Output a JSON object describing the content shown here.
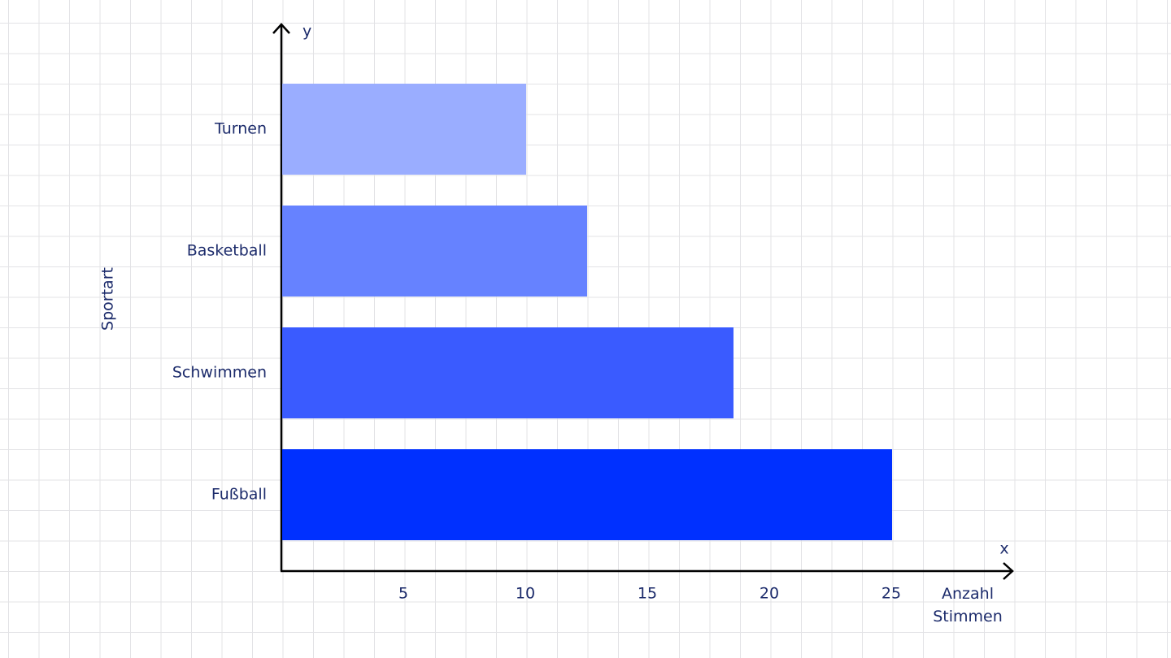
{
  "chart_data": {
    "type": "bar",
    "orientation": "horizontal",
    "x_axis_name": "x",
    "y_axis_name": "y",
    "x_label": "Anzahl Stimmen",
    "y_label": "Sportart",
    "categories": [
      "Turnen",
      "Basketball",
      "Schwimmen",
      "Fußball"
    ],
    "values": [
      10,
      12.5,
      18.5,
      25
    ],
    "colors": [
      "#9aadff",
      "#6682ff",
      "#3a5bff",
      "#0030ff"
    ],
    "xlim": [
      0,
      30
    ],
    "xticks": [
      5,
      10,
      15,
      20,
      25
    ]
  }
}
